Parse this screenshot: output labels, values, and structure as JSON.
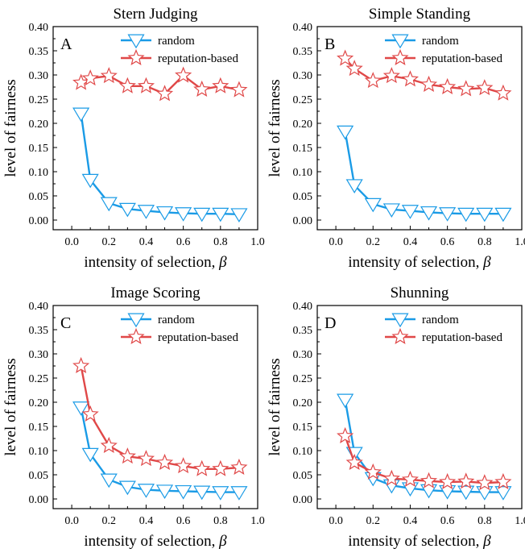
{
  "chart_data": [
    {
      "type": "line",
      "panel_label": "A",
      "title": "Stern Judging",
      "xlabel": "intensity of selection,",
      "xlabel_symbol": "β",
      "ylabel": "level of fairness",
      "xlim": [
        -0.1,
        1.0
      ],
      "ylim": [
        -0.02,
        0.4
      ],
      "xticks": [
        "0.0",
        "0.2",
        "0.4",
        "0.6",
        "0.8",
        "1.0"
      ],
      "yticks": [
        "0.00",
        "0.05",
        "0.10",
        "0.15",
        "0.20",
        "0.25",
        "0.30",
        "0.35",
        "0.40"
      ],
      "x": [
        0.05,
        0.1,
        0.2,
        0.3,
        0.4,
        0.5,
        0.6,
        0.7,
        0.8,
        0.9
      ],
      "series": [
        {
          "name": "random",
          "marker": "triangle-down",
          "values": [
            0.22,
            0.083,
            0.035,
            0.023,
            0.019,
            0.016,
            0.014,
            0.013,
            0.013,
            0.012
          ]
        },
        {
          "name": "reputation-based",
          "marker": "star",
          "values": [
            0.284,
            0.293,
            0.298,
            0.277,
            0.277,
            0.261,
            0.299,
            0.27,
            0.277,
            0.269
          ]
        }
      ]
    },
    {
      "type": "line",
      "panel_label": "B",
      "title": "Simple Standing",
      "xlabel": "intensity of selection,",
      "xlabel_symbol": "β",
      "ylabel": "level of fairness",
      "xlim": [
        -0.1,
        1.0
      ],
      "ylim": [
        -0.02,
        0.4
      ],
      "xticks": [
        "0.0",
        "0.2",
        "0.4",
        "0.6",
        "0.8",
        "1.0"
      ],
      "yticks": [
        "0.00",
        "0.05",
        "0.10",
        "0.15",
        "0.20",
        "0.25",
        "0.30",
        "0.35",
        "0.40"
      ],
      "x": [
        0.05,
        0.1,
        0.2,
        0.3,
        0.4,
        0.5,
        0.6,
        0.7,
        0.8,
        0.9
      ],
      "series": [
        {
          "name": "random",
          "marker": "triangle-down",
          "values": [
            0.183,
            0.072,
            0.033,
            0.022,
            0.019,
            0.016,
            0.014,
            0.013,
            0.013,
            0.013
          ]
        },
        {
          "name": "reputation-based",
          "marker": "star",
          "values": [
            0.334,
            0.313,
            0.288,
            0.298,
            0.291,
            0.28,
            0.275,
            0.271,
            0.273,
            0.262
          ]
        }
      ]
    },
    {
      "type": "line",
      "panel_label": "C",
      "title": "Image Scoring",
      "xlabel": "intensity of selection,",
      "xlabel_symbol": "β",
      "ylabel": "level of fairness",
      "xlim": [
        -0.1,
        1.0
      ],
      "ylim": [
        -0.02,
        0.4
      ],
      "xticks": [
        "0.0",
        "0.2",
        "0.4",
        "0.6",
        "0.8",
        "1.0"
      ],
      "yticks": [
        "0.00",
        "0.05",
        "0.10",
        "0.15",
        "0.20",
        "0.25",
        "0.30",
        "0.35",
        "0.40"
      ],
      "x": [
        0.05,
        0.1,
        0.2,
        0.3,
        0.4,
        0.5,
        0.6,
        0.7,
        0.8,
        0.9
      ],
      "series": [
        {
          "name": "random",
          "marker": "triangle-down",
          "values": [
            0.189,
            0.093,
            0.04,
            0.025,
            0.019,
            0.017,
            0.016,
            0.015,
            0.014,
            0.014
          ]
        },
        {
          "name": "reputation-based",
          "marker": "star",
          "values": [
            0.275,
            0.175,
            0.11,
            0.088,
            0.083,
            0.075,
            0.068,
            0.062,
            0.062,
            0.065
          ]
        }
      ]
    },
    {
      "type": "line",
      "panel_label": "D",
      "title": "Shunning",
      "xlabel": "intensity of selection,",
      "xlabel_symbol": "β",
      "ylabel": "level of fairness",
      "xlim": [
        -0.1,
        1.0
      ],
      "ylim": [
        -0.02,
        0.4
      ],
      "xticks": [
        "0.0",
        "0.2",
        "0.4",
        "0.6",
        "0.8",
        "1.0"
      ],
      "yticks": [
        "0.00",
        "0.05",
        "0.10",
        "0.15",
        "0.20",
        "0.25",
        "0.30",
        "0.35",
        "0.40"
      ],
      "x": [
        0.05,
        0.1,
        0.2,
        0.3,
        0.4,
        0.5,
        0.6,
        0.7,
        0.8,
        0.9
      ],
      "series": [
        {
          "name": "random",
          "marker": "triangle-down",
          "values": [
            0.205,
            0.095,
            0.043,
            0.028,
            0.022,
            0.018,
            0.016,
            0.015,
            0.014,
            0.014
          ]
        },
        {
          "name": "reputation-based",
          "marker": "star",
          "values": [
            0.13,
            0.075,
            0.055,
            0.042,
            0.04,
            0.037,
            0.035,
            0.036,
            0.033,
            0.035
          ]
        }
      ]
    }
  ],
  "colors": {
    "random": "#1a9be6",
    "reputation-based": "#e04848"
  },
  "legend_position": "top-right"
}
